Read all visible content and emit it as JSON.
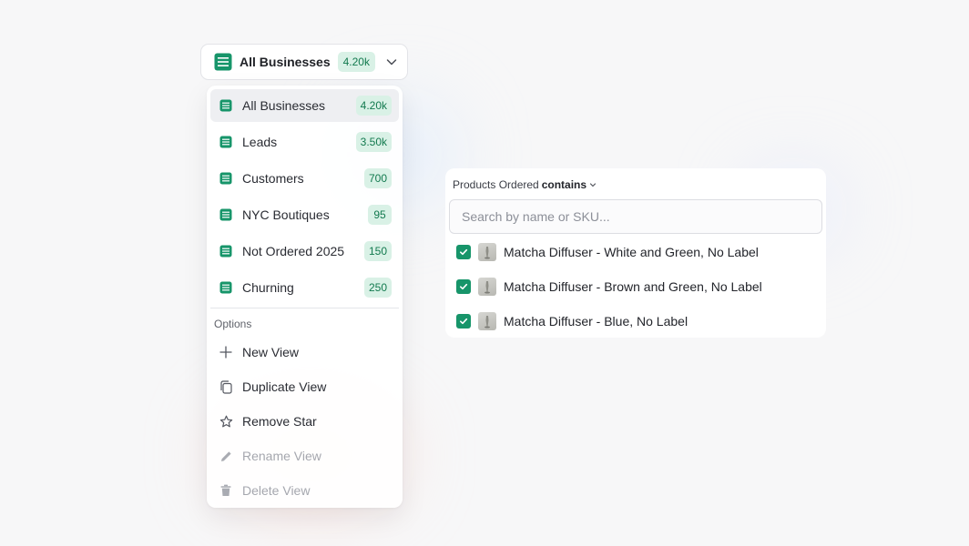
{
  "trigger": {
    "title": "All Businesses",
    "count": "4.20k"
  },
  "views": [
    {
      "label": "All Businesses",
      "count": "4.20k",
      "active": true
    },
    {
      "label": "Leads",
      "count": "3.50k"
    },
    {
      "label": "Customers",
      "count": "700"
    },
    {
      "label": "NYC Boutiques",
      "count": "95"
    },
    {
      "label": "Not Ordered 2025",
      "count": "150"
    },
    {
      "label": "Churning",
      "count": "250"
    }
  ],
  "options": {
    "heading": "Options",
    "new_view": "New View",
    "duplicate_view": "Duplicate View",
    "remove_star": "Remove Star",
    "rename_view": "Rename View",
    "delete_view": "Delete View"
  },
  "filter": {
    "field": "Products Ordered",
    "operator": "contains",
    "search_placeholder": "Search by name or SKU...",
    "products": [
      {
        "name": "Matcha Diffuser - White and Green, No Label",
        "checked": true
      },
      {
        "name": "Matcha Diffuser - Brown and Green, No Label",
        "checked": true
      },
      {
        "name": "Matcha Diffuser - Blue, No Label",
        "checked": true
      }
    ]
  },
  "colors": {
    "accent": "#17956a",
    "badge_bg": "#d9f1e6",
    "badge_text": "#137a4f"
  },
  "icons": {
    "view": "table-list-icon",
    "chevron": "chevron-down-icon",
    "new": "plus-icon",
    "duplicate": "copy-icon",
    "star": "star-outline-icon",
    "rename": "pencil-icon",
    "delete": "trash-icon",
    "check": "checkmark-icon"
  }
}
